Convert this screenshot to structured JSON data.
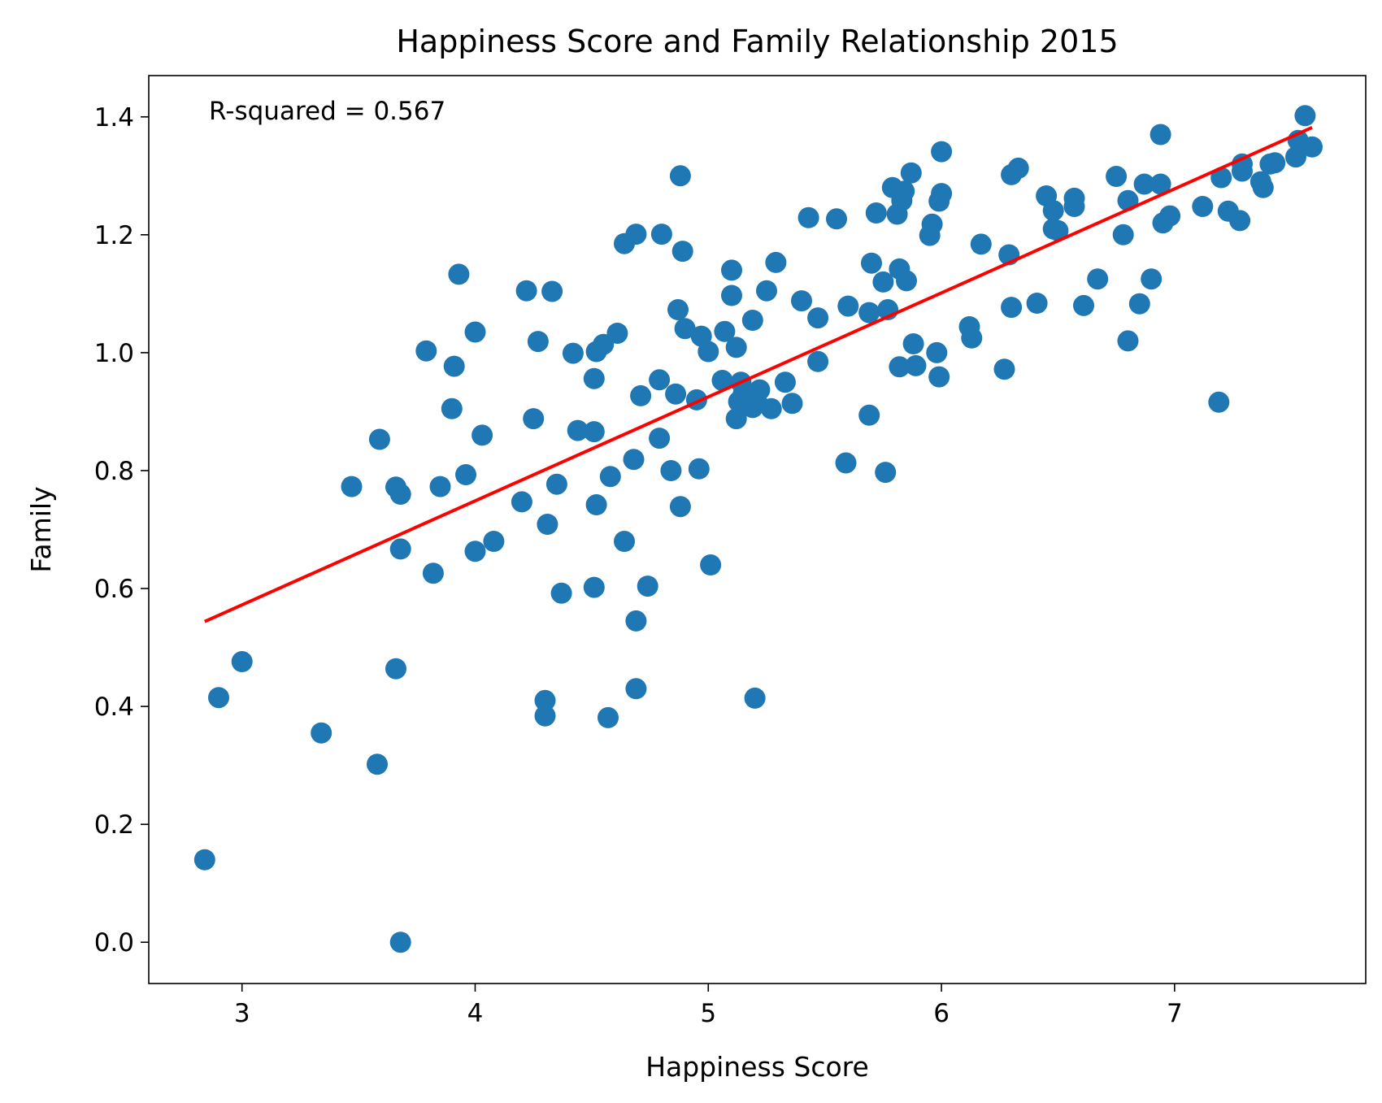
{
  "chart_data": {
    "type": "scatter",
    "title": "Happiness Score and Family Relationship 2015",
    "xlabel": "Happiness Score",
    "ylabel": "Family",
    "xlim": [
      2.6,
      7.82
    ],
    "ylim": [
      -0.07,
      1.47
    ],
    "x_ticks": [
      3,
      4,
      5,
      6,
      7
    ],
    "x_tick_labels": [
      "3",
      "4",
      "5",
      "6",
      "7"
    ],
    "y_ticks": [
      0.0,
      0.2,
      0.4,
      0.6,
      0.8,
      1.0,
      1.2,
      1.4
    ],
    "y_tick_labels": [
      "0.0",
      "0.2",
      "0.4",
      "0.6",
      "0.8",
      "1.0",
      "1.2",
      "1.4"
    ],
    "annotation": "R-squared = 0.567",
    "grid": false,
    "point_color": "#1f77b4",
    "line_color": "#ff0000",
    "fit_line": {
      "x": [
        2.84,
        7.59
      ],
      "y": [
        0.544,
        1.382
      ]
    },
    "points": [
      [
        2.84,
        0.14
      ],
      [
        2.9,
        0.415
      ],
      [
        3.0,
        0.476
      ],
      [
        3.34,
        0.355
      ],
      [
        3.47,
        0.773
      ],
      [
        3.58,
        0.302
      ],
      [
        3.59,
        0.853
      ],
      [
        3.66,
        0.464
      ],
      [
        3.66,
        0.772
      ],
      [
        3.68,
        0.76
      ],
      [
        3.68,
        0.0
      ],
      [
        3.68,
        0.667
      ],
      [
        3.79,
        1.003
      ],
      [
        3.82,
        0.626
      ],
      [
        3.85,
        0.773
      ],
      [
        3.9,
        0.905
      ],
      [
        3.91,
        0.977
      ],
      [
        3.93,
        1.133
      ],
      [
        3.96,
        0.793
      ],
      [
        4.0,
        1.035
      ],
      [
        4.0,
        0.663
      ],
      [
        4.03,
        0.86
      ],
      [
        4.08,
        0.68
      ],
      [
        4.2,
        0.747
      ],
      [
        4.22,
        1.105
      ],
      [
        4.25,
        0.888
      ],
      [
        4.27,
        1.019
      ],
      [
        4.3,
        0.41
      ],
      [
        4.3,
        0.384
      ],
      [
        4.31,
        0.709
      ],
      [
        4.33,
        1.104
      ],
      [
        4.35,
        0.777
      ],
      [
        4.37,
        0.592
      ],
      [
        4.42,
        0.999
      ],
      [
        4.44,
        0.868
      ],
      [
        4.51,
        0.602
      ],
      [
        4.51,
        0.956
      ],
      [
        4.51,
        0.866
      ],
      [
        4.52,
        0.742
      ],
      [
        4.52,
        1.002
      ],
      [
        4.55,
        1.014
      ],
      [
        4.57,
        0.381
      ],
      [
        4.58,
        0.79
      ],
      [
        4.61,
        1.033
      ],
      [
        4.64,
        0.68
      ],
      [
        4.64,
        1.185
      ],
      [
        4.68,
        0.819
      ],
      [
        4.69,
        1.201
      ],
      [
        4.69,
        0.545
      ],
      [
        4.69,
        0.43
      ],
      [
        4.71,
        0.927
      ],
      [
        4.74,
        0.604
      ],
      [
        4.79,
        0.855
      ],
      [
        4.79,
        0.954
      ],
      [
        4.8,
        1.201
      ],
      [
        4.84,
        0.8
      ],
      [
        4.86,
        0.93
      ],
      [
        4.87,
        1.073
      ],
      [
        4.88,
        0.739
      ],
      [
        4.88,
        1.3
      ],
      [
        4.89,
        1.172
      ],
      [
        4.9,
        1.041
      ],
      [
        4.95,
        0.92
      ],
      [
        4.96,
        0.803
      ],
      [
        4.97,
        1.028
      ],
      [
        5.0,
        1.002
      ],
      [
        5.01,
        0.64
      ],
      [
        5.06,
        0.953
      ],
      [
        5.07,
        1.036
      ],
      [
        5.1,
        1.097
      ],
      [
        5.1,
        1.14
      ],
      [
        5.12,
        1.009
      ],
      [
        5.12,
        0.888
      ],
      [
        5.13,
        0.917
      ],
      [
        5.14,
        0.95
      ],
      [
        5.15,
        0.93
      ],
      [
        5.19,
        1.055
      ],
      [
        5.19,
        0.907
      ],
      [
        5.2,
        0.414
      ],
      [
        5.21,
        0.915
      ],
      [
        5.22,
        0.937
      ],
      [
        5.25,
        1.105
      ],
      [
        5.27,
        0.905
      ],
      [
        5.29,
        1.153
      ],
      [
        5.33,
        0.95
      ],
      [
        5.36,
        0.914
      ],
      [
        5.4,
        1.088
      ],
      [
        5.43,
        1.229
      ],
      [
        5.47,
        1.059
      ],
      [
        5.47,
        0.985
      ],
      [
        5.55,
        1.227
      ],
      [
        5.59,
        0.813
      ],
      [
        5.6,
        1.079
      ],
      [
        5.69,
        1.068
      ],
      [
        5.69,
        0.894
      ],
      [
        5.7,
        1.152
      ],
      [
        5.72,
        1.237
      ],
      [
        5.75,
        1.12
      ],
      [
        5.76,
        0.797
      ],
      [
        5.77,
        1.073
      ],
      [
        5.79,
        1.28
      ],
      [
        5.81,
        1.235
      ],
      [
        5.82,
        0.976
      ],
      [
        5.82,
        1.142
      ],
      [
        5.83,
        1.258
      ],
      [
        5.84,
        1.274
      ],
      [
        5.85,
        1.122
      ],
      [
        5.87,
        1.305
      ],
      [
        5.88,
        1.015
      ],
      [
        5.89,
        0.978
      ],
      [
        5.95,
        1.199
      ],
      [
        5.96,
        1.218
      ],
      [
        5.98,
        1.0
      ],
      [
        5.99,
        0.959
      ],
      [
        5.99,
        1.257
      ],
      [
        6.0,
        1.27
      ],
      [
        6.0,
        1.341
      ],
      [
        6.12,
        1.044
      ],
      [
        6.13,
        1.025
      ],
      [
        6.17,
        1.184
      ],
      [
        6.27,
        0.972
      ],
      [
        6.29,
        1.166
      ],
      [
        6.3,
        1.077
      ],
      [
        6.3,
        1.302
      ],
      [
        6.33,
        1.313
      ],
      [
        6.41,
        1.084
      ],
      [
        6.45,
        1.266
      ],
      [
        6.48,
        1.241
      ],
      [
        6.48,
        1.21
      ],
      [
        6.5,
        1.207
      ],
      [
        6.57,
        1.262
      ],
      [
        6.57,
        1.248
      ],
      [
        6.61,
        1.08
      ],
      [
        6.67,
        1.125
      ],
      [
        6.75,
        1.299
      ],
      [
        6.78,
        1.2
      ],
      [
        6.8,
        1.02
      ],
      [
        6.8,
        1.258
      ],
      [
        6.85,
        1.083
      ],
      [
        6.87,
        1.286
      ],
      [
        6.9,
        1.125
      ],
      [
        6.94,
        1.286
      ],
      [
        6.94,
        1.37
      ],
      [
        6.95,
        1.22
      ],
      [
        6.98,
        1.232
      ],
      [
        7.12,
        1.248
      ],
      [
        7.19,
        0.916
      ],
      [
        7.2,
        1.297
      ],
      [
        7.23,
        1.24
      ],
      [
        7.28,
        1.224
      ],
      [
        7.29,
        1.308
      ],
      [
        7.29,
        1.32
      ],
      [
        7.37,
        1.29
      ],
      [
        7.38,
        1.28
      ],
      [
        7.41,
        1.32
      ],
      [
        7.43,
        1.322
      ],
      [
        7.52,
        1.332
      ],
      [
        7.53,
        1.36
      ],
      [
        7.56,
        1.402
      ],
      [
        7.59,
        1.349
      ]
    ]
  }
}
